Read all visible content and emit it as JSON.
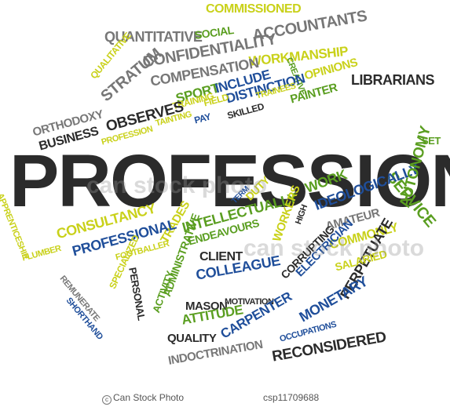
{
  "colors": {
    "dark": "#2b2b2b",
    "gray": "#777777",
    "green": "#5a9e20",
    "yellow": "#c9d11a",
    "blue": "#1f4e9a"
  },
  "words": [
    {
      "text": "COMMISSIONED",
      "color": "yellow"
    },
    {
      "text": "QUANTITATIVE",
      "color": "gray"
    },
    {
      "text": "SOCIAL",
      "color": "green"
    },
    {
      "text": "ACCOUNTANTS",
      "color": "gray"
    },
    {
      "text": "QUALITATIVE",
      "color": "yellow"
    },
    {
      "text": "STRATUM",
      "color": "gray"
    },
    {
      "text": "CONFIDENTIALITY",
      "color": "gray"
    },
    {
      "text": "WORKMANSHIP",
      "color": "yellow"
    },
    {
      "text": "COMPENSATION",
      "color": "gray"
    },
    {
      "text": "CREATIVE",
      "color": "green"
    },
    {
      "text": "OPINIONS",
      "color": "yellow"
    },
    {
      "text": "LIBRARIANS",
      "color": "dark"
    },
    {
      "text": "SPORT",
      "color": "green"
    },
    {
      "text": "INCLUDE",
      "color": "blue"
    },
    {
      "text": "DISTINCTION",
      "color": "blue"
    },
    {
      "text": "PAINTER",
      "color": "green"
    },
    {
      "text": "TRAINING",
      "color": "yellow"
    },
    {
      "text": "FIELD",
      "color": "yellow"
    },
    {
      "text": "TRAINEES",
      "color": "yellow"
    },
    {
      "text": "ORTHODOXY",
      "color": "gray"
    },
    {
      "text": "OBSERVES",
      "color": "dark"
    },
    {
      "text": "TAINTING",
      "color": "yellow"
    },
    {
      "text": "PAY",
      "color": "blue"
    },
    {
      "text": "SKILLED",
      "color": "dark"
    },
    {
      "text": "BUSINESS",
      "color": "dark"
    },
    {
      "text": "PROFESSION",
      "color": "yellow"
    },
    {
      "text": "SET",
      "color": "green"
    },
    {
      "text": "PROFESSIONAL",
      "color": "dark"
    },
    {
      "text": "SERVICE",
      "color": "green"
    },
    {
      "text": "APPRENTICESHIP",
      "color": "yellow"
    },
    {
      "text": "WORK",
      "color": "green"
    },
    {
      "text": "TERM",
      "color": "blue"
    },
    {
      "text": "DUTY",
      "color": "yellow"
    },
    {
      "text": "IDEOLOGICALLY",
      "color": "blue"
    },
    {
      "text": "HIGH",
      "color": "dark"
    },
    {
      "text": "AUTONOMY",
      "color": "green"
    },
    {
      "text": "CONSULTANCY",
      "color": "yellow"
    },
    {
      "text": "TRADES",
      "color": "yellow"
    },
    {
      "text": "INTELLECTUALLY",
      "color": "green"
    },
    {
      "text": "AMATEUR",
      "color": "gray"
    },
    {
      "text": "ENDEAVOURS",
      "color": "green"
    },
    {
      "text": "WORKERS",
      "color": "yellow"
    },
    {
      "text": "COMMONLY",
      "color": "yellow"
    },
    {
      "text": "PROFESSIONAL",
      "color": "blue"
    },
    {
      "text": "CORRUPTING",
      "color": "dark"
    },
    {
      "text": "PLUMBER",
      "color": "yellow"
    },
    {
      "text": "FOOTBALLER",
      "color": "yellow"
    },
    {
      "text": "CLIENT",
      "color": "dark"
    },
    {
      "text": "PERPETUATE",
      "color": "dark"
    },
    {
      "text": "REMUNERATE",
      "color": "gray"
    },
    {
      "text": "ADMINISTRATIVE",
      "color": "green"
    },
    {
      "text": "ELECTRICIAN",
      "color": "blue"
    },
    {
      "text": "SALARIED",
      "color": "yellow"
    },
    {
      "text": "SPECIALIZED",
      "color": "yellow"
    },
    {
      "text": "PERSONAL",
      "color": "dark"
    },
    {
      "text": "COLLEAGUE",
      "color": "blue"
    },
    {
      "text": "ACTIVITY",
      "color": "green"
    },
    {
      "text": "MASON",
      "color": "dark"
    },
    {
      "text": "MOTIVATION",
      "color": "dark"
    },
    {
      "text": "MONETARY",
      "color": "blue"
    },
    {
      "text": "SHORTHAND",
      "color": "blue"
    },
    {
      "text": "ATTITUDE",
      "color": "green"
    },
    {
      "text": "CARPENTER",
      "color": "blue"
    },
    {
      "text": "QUALITY",
      "color": "dark"
    },
    {
      "text": "OCCUPATIONS",
      "color": "blue"
    },
    {
      "text": "RECONSIDERED",
      "color": "dark"
    },
    {
      "text": "INDOCTRINATION",
      "color": "gray"
    }
  ],
  "watermark": "can stock photo",
  "footer": {
    "left": "© Can Stock Photo - csp11709688",
    "left_brand": "Can Stock Photo",
    "right": "csp11709688"
  }
}
